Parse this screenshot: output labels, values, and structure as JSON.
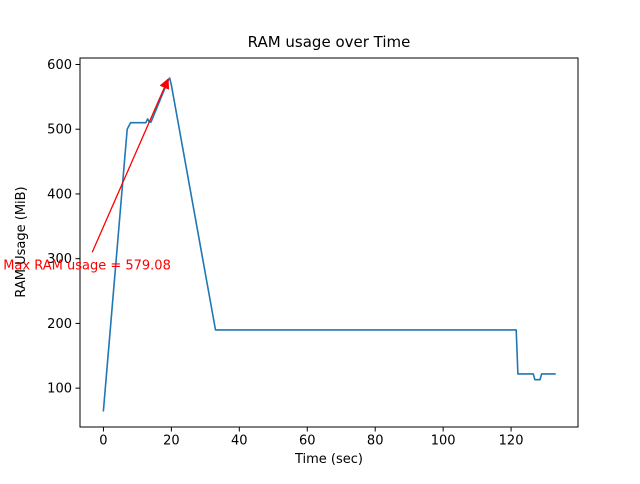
{
  "figure": {
    "background": "#ffffff"
  },
  "chart_data": {
    "type": "line",
    "title": "RAM usage over Time",
    "xlabel": "Time (sec)",
    "ylabel": "RAM Usage (MiB)",
    "xlim": [
      -6.9,
      139.7
    ],
    "ylim": [
      40,
      610
    ],
    "xticks": [
      0,
      20,
      40,
      60,
      80,
      100,
      120
    ],
    "yticks": [
      100,
      200,
      300,
      400,
      500,
      600
    ],
    "grid": false,
    "axes_color": "#000000",
    "series": [
      {
        "name": "RAM usage",
        "color": "#1f77b4",
        "points": [
          [
            0,
            65
          ],
          [
            7,
            500
          ],
          [
            8,
            510
          ],
          [
            12.5,
            510
          ],
          [
            13,
            516
          ],
          [
            13.5,
            511
          ],
          [
            14,
            511
          ],
          [
            19,
            575
          ],
          [
            19.5,
            579
          ],
          [
            20,
            568
          ],
          [
            33,
            190
          ],
          [
            121.5,
            190
          ],
          [
            122,
            122
          ],
          [
            126.5,
            122
          ],
          [
            127,
            113
          ],
          [
            128.5,
            113
          ],
          [
            129,
            122
          ],
          [
            133,
            122
          ]
        ]
      }
    ],
    "annotation": {
      "text": "Max RAM usage = 579.08",
      "color": "#ff0000",
      "text_xy": [
        -29.5,
        283
      ],
      "arrow_from": [
        -3.3,
        310
      ],
      "arrow_to": [
        19,
        577
      ]
    }
  }
}
